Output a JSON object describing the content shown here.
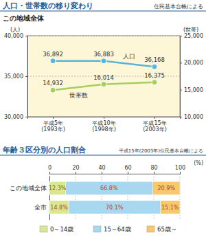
{
  "chart_data": [
    {
      "type": "line",
      "title": "人口・世帯数の移り変わり",
      "source": "住民基本台帳による",
      "subtitle": "この地域全体",
      "ylabel": "(人)",
      "y2label": "(世帯)",
      "categories": [
        "平成5年\n(1993年)",
        "平成10年\n(1998年)",
        "平成15年\n(2003年)"
      ],
      "ylim": [
        30000,
        40000
      ],
      "yticks": [
        {
          "value": 30000,
          "label": "30,000"
        },
        {
          "value": 35000,
          "label": "35,000"
        },
        {
          "value": 40000,
          "label": "40,000"
        }
      ],
      "y2lim": [
        10000,
        25000
      ],
      "y2ticks": [
        {
          "value": 10000,
          "label": "10,000"
        },
        {
          "value": 15000,
          "label": "15,000"
        },
        {
          "value": 20000,
          "label": "20,000"
        },
        {
          "value": 25000,
          "label": "25,000"
        }
      ],
      "grid": true,
      "data_labels": true,
      "series": [
        {
          "name": "人口",
          "color": "#5bb5d9",
          "marker": "circle",
          "values": [
            36892,
            36883,
            36168
          ],
          "value_labels": [
            "36,892",
            "36,883",
            "36,168"
          ]
        },
        {
          "name": "世帯数",
          "color": "#a5cf5c",
          "marker": "circle",
          "axis": "y2",
          "values": [
            14932,
            16014,
            16375
          ],
          "value_labels": [
            "14,932",
            "16,014",
            "16,375"
          ]
        }
      ]
    },
    {
      "type": "bar",
      "orientation": "horizontal",
      "stacked": true,
      "title": "年齢３区分別の人口割合",
      "source": "平成15年(2003年)住民基本台帳による",
      "xlabel": "(%)",
      "categories": [
        "この地域全体",
        "全市"
      ],
      "xlim": [
        0,
        100
      ],
      "xticks": [
        0,
        20,
        40,
        60,
        80,
        100
      ],
      "grid": true,
      "data_labels": true,
      "legend": "bottom",
      "series": [
        {
          "name": "0～14歳",
          "color": "#d9e88f",
          "values": [
            12.3,
            14.8
          ],
          "value_labels": [
            "12.3%",
            "14.8%"
          ]
        },
        {
          "name": "15～64歳",
          "color": "#a8d8f0",
          "values": [
            66.8,
            70.1
          ],
          "value_labels": [
            "66.8%",
            "70.1%"
          ]
        },
        {
          "name": "65歳～",
          "color": "#f7c96a",
          "values": [
            20.9,
            15.1
          ],
          "value_labels": [
            "20.9%",
            "15.1%"
          ]
        }
      ]
    }
  ]
}
